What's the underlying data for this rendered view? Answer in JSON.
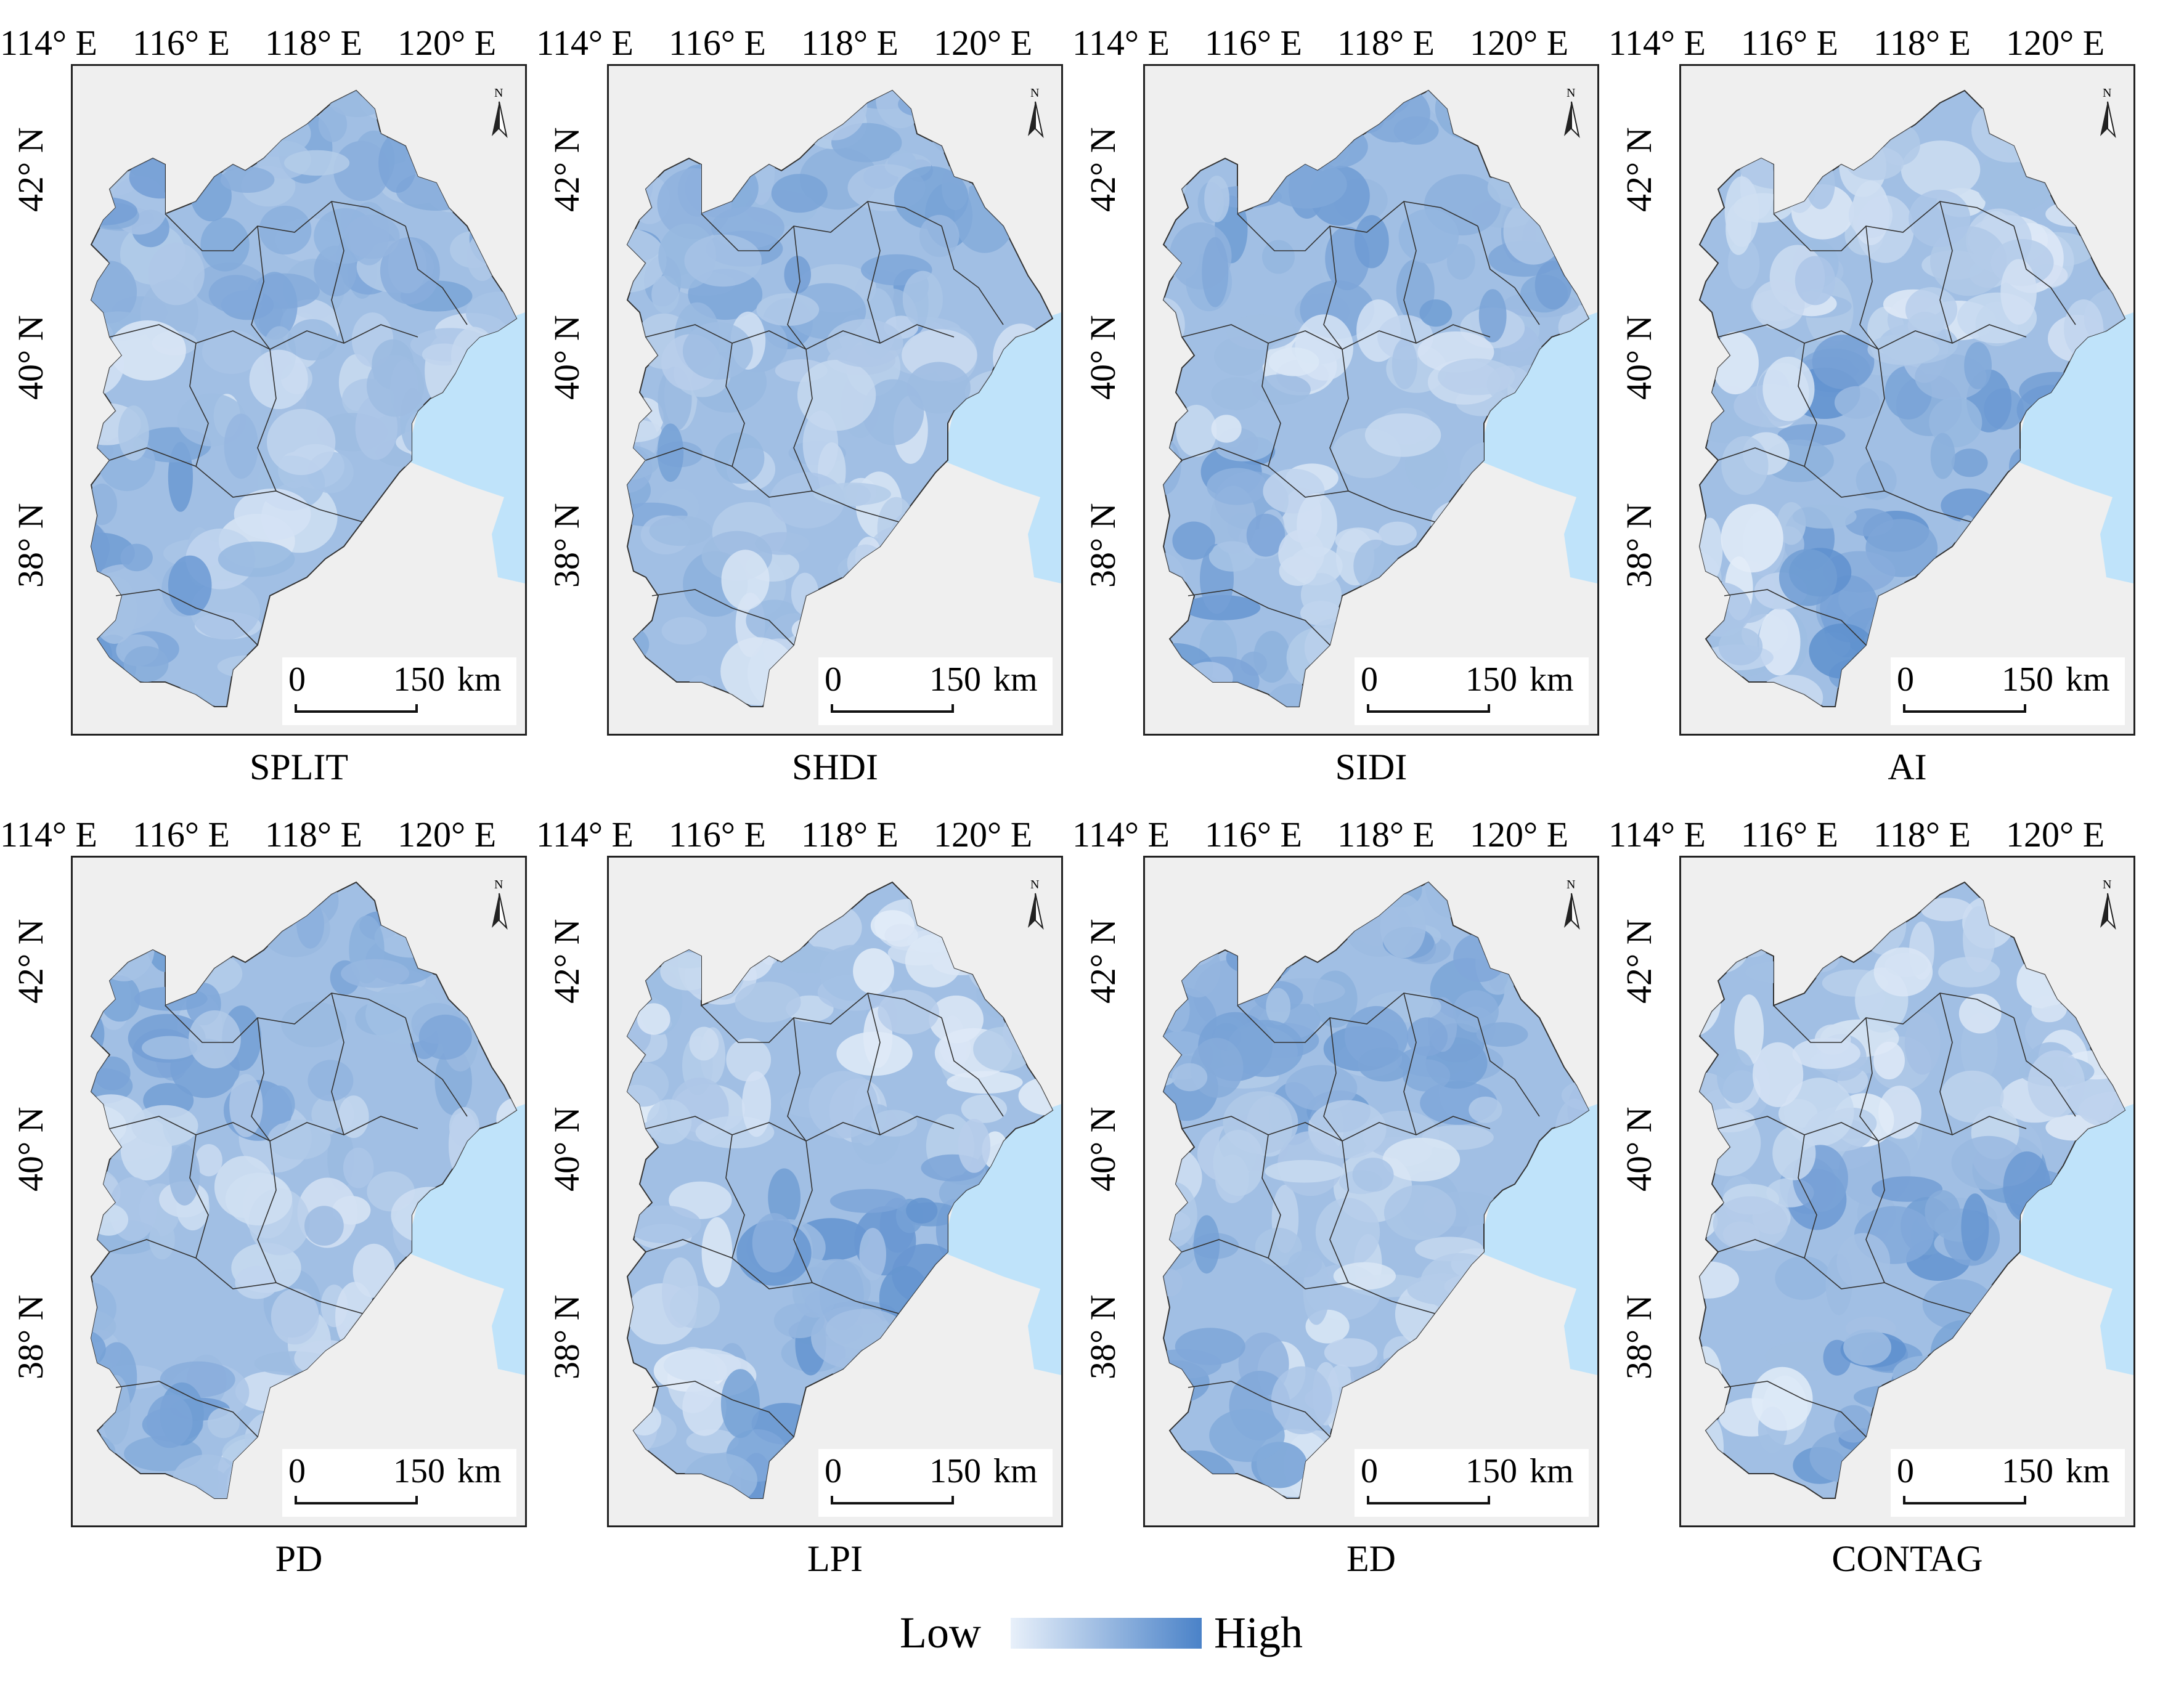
{
  "figure": {
    "x_tick_labels": [
      "114° E",
      "116° E",
      "118° E",
      "120° E"
    ],
    "y_tick_labels": [
      "42° N",
      "40° N",
      "38° N"
    ],
    "north_label": "N",
    "scale": {
      "zero": "0",
      "distance": "150",
      "unit": "km"
    }
  },
  "panels": [
    {
      "title": "SPLIT",
      "shading": "darker in north and south-west"
    },
    {
      "title": "SHDI",
      "shading": "darker in north and south-west"
    },
    {
      "title": "SIDI",
      "shading": "darker in north and south-west"
    },
    {
      "title": "AI",
      "shading": "darker in south-east plain"
    },
    {
      "title": "PD",
      "shading": "darker in north and south-west"
    },
    {
      "title": "LPI",
      "shading": "darker in south-east plain"
    },
    {
      "title": "ED",
      "shading": "darker in north and south-west"
    },
    {
      "title": "CONTAG",
      "shading": "darker in south-east plain"
    }
  ],
  "legend": {
    "low": "Low",
    "high": "High",
    "low_color": "#e8f0fa",
    "high_color": "#4a82c8"
  },
  "colors": {
    "background": "#efefef",
    "sea": "#bfe3fa",
    "boundary": "#333333"
  }
}
